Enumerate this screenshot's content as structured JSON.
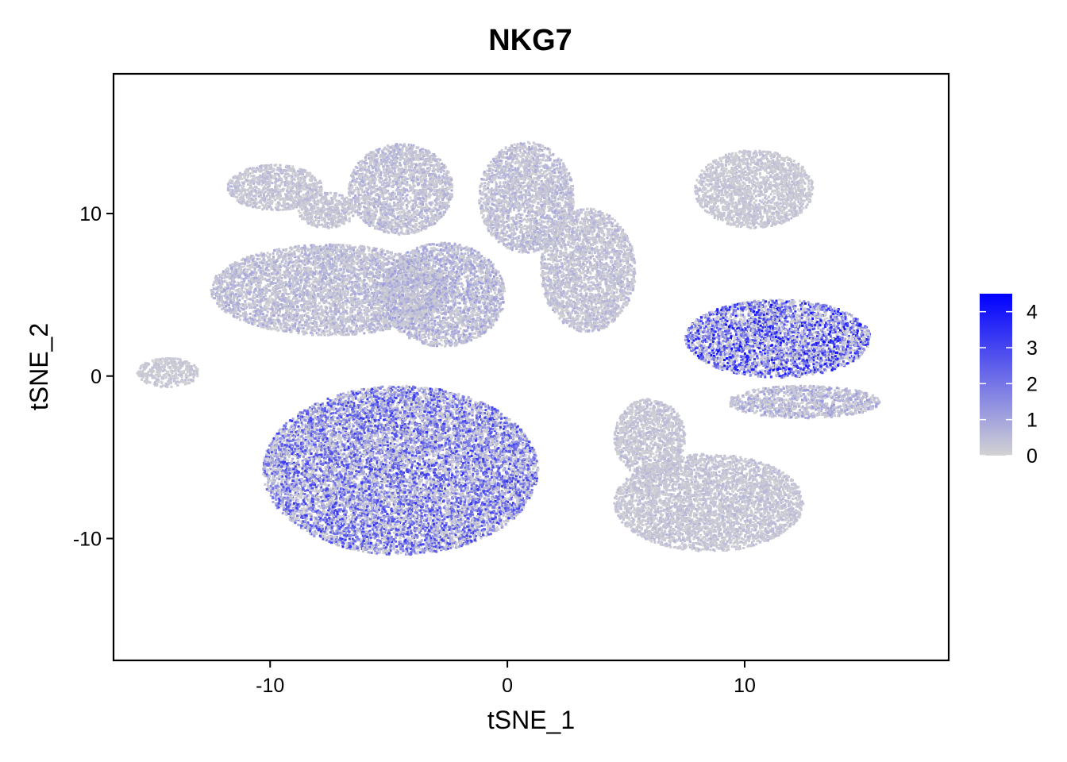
{
  "chart_data": {
    "type": "scatter",
    "title": "NKG7",
    "xlabel": "tSNE_1",
    "ylabel": "tSNE_2",
    "xlim": [
      -16.6,
      18.6
    ],
    "ylim": [
      -17.5,
      18.6
    ],
    "x_ticks": [
      -10,
      0,
      10
    ],
    "y_ticks": [
      -10,
      0,
      10
    ],
    "x_tick_labels": [
      "-10",
      "0",
      "10"
    ],
    "y_tick_labels": [
      "-10",
      "0",
      "10"
    ],
    "grid": false,
    "legend_position": "right",
    "color_scale": {
      "name": "",
      "min": 0,
      "max": 4.5,
      "low_color": "#d3d3d3",
      "high_color": "#0000ff",
      "ticks": [
        0,
        1,
        2,
        3,
        4
      ],
      "tick_labels": [
        "0",
        "1",
        "2",
        "3",
        "4"
      ]
    },
    "clusters": [
      {
        "center": [
          -4.5,
          -5.8
        ],
        "spread": [
          5.8,
          5.2
        ],
        "mean_expression": 1.9
      },
      {
        "center": [
          -7.5,
          5.3
        ],
        "spread": [
          5.0,
          2.8
        ],
        "mean_expression": 0.55
      },
      {
        "center": [
          -2.7,
          5.0
        ],
        "spread": [
          2.6,
          3.2
        ],
        "mean_expression": 0.7
      },
      {
        "center": [
          -4.5,
          11.5
        ],
        "spread": [
          2.2,
          2.8
        ],
        "mean_expression": 0.5
      },
      {
        "center": [
          -9.8,
          11.6
        ],
        "spread": [
          2.0,
          1.4
        ],
        "mean_expression": 0.35
      },
      {
        "center": [
          -7.6,
          10.2
        ],
        "spread": [
          1.2,
          1.1
        ],
        "mean_expression": 0.35
      },
      {
        "center": [
          0.8,
          11.0
        ],
        "spread": [
          2.0,
          3.4
        ],
        "mean_expression": 0.5
      },
      {
        "center": [
          3.4,
          6.5
        ],
        "spread": [
          2.0,
          3.8
        ],
        "mean_expression": 0.45
      },
      {
        "center": [
          10.4,
          11.5
        ],
        "spread": [
          2.5,
          2.4
        ],
        "mean_expression": 0.3
      },
      {
        "center": [
          11.4,
          2.3
        ],
        "spread": [
          3.9,
          2.4
        ],
        "mean_expression": 2.4
      },
      {
        "center": [
          12.5,
          -1.6
        ],
        "spread": [
          3.2,
          1.0
        ],
        "mean_expression": 0.7
      },
      {
        "center": [
          8.5,
          -7.8
        ],
        "spread": [
          4.0,
          3.0
        ],
        "mean_expression": 0.35
      },
      {
        "center": [
          6.0,
          -3.8
        ],
        "spread": [
          1.5,
          2.4
        ],
        "mean_expression": 0.35
      },
      {
        "center": [
          -14.3,
          0.2
        ],
        "spread": [
          1.3,
          0.9
        ],
        "mean_expression": 0.25
      }
    ]
  }
}
